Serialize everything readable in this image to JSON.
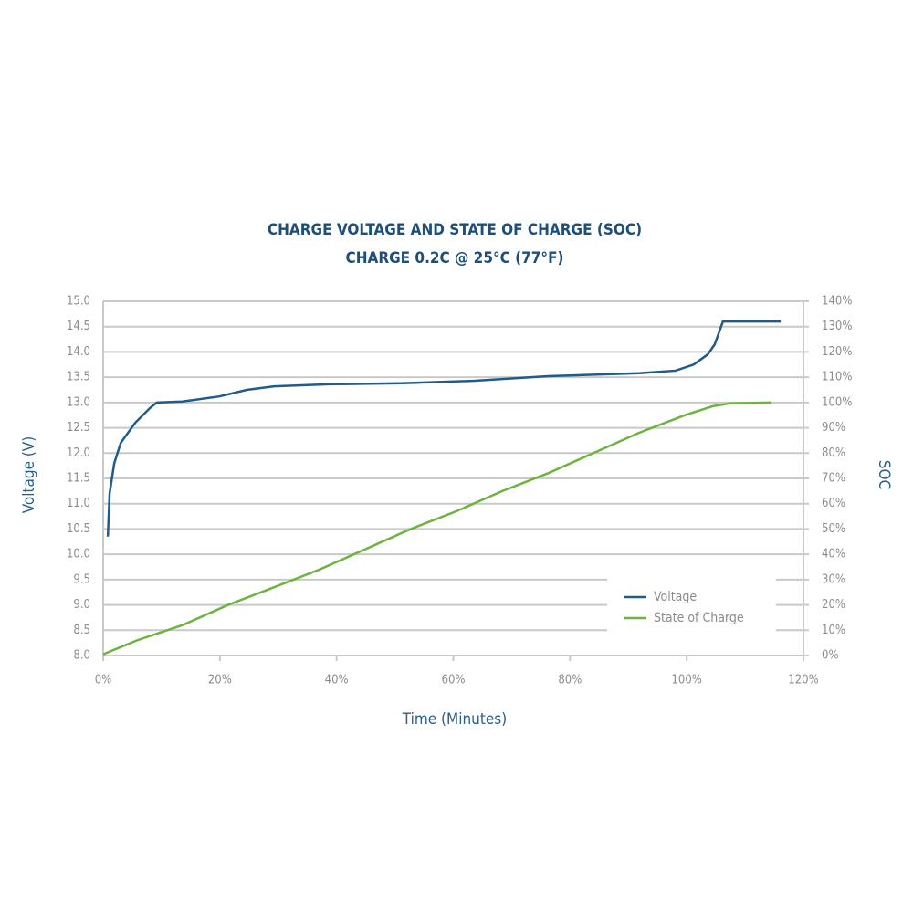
{
  "chart_data": {
    "type": "line",
    "title": "CHARGE VOLTAGE AND STATE OF CHARGE (SOC)",
    "subtitle": "CHARGE 0.2C @ 25°C (77°F)",
    "x_label": "Time (Minutes)",
    "y_label": "Voltage (V)",
    "y2_label": "SOC",
    "xlim": [
      0,
      120
    ],
    "xticks": [
      {
        "value": 0,
        "label": "0%"
      },
      {
        "value": 20,
        "label": "20%"
      },
      {
        "value": 40,
        "label": "40%"
      },
      {
        "value": 60,
        "label": "60%"
      },
      {
        "value": 80,
        "label": "80%"
      },
      {
        "value": 100,
        "label": "100%"
      },
      {
        "value": 120,
        "label": "120%"
      }
    ],
    "ylim": [
      8,
      15
    ],
    "yticks": [
      {
        "value": 8,
        "label": "8.0"
      },
      8.5,
      {
        "value": 9,
        "label": "9.0"
      },
      9.5,
      {
        "value": 10,
        "label": "10.0"
      },
      10.5,
      {
        "value": 11,
        "label": "11.0"
      },
      11.5,
      {
        "value": 12,
        "label": "12.0"
      },
      12.5,
      {
        "value": 13,
        "label": "13.0"
      },
      13.5,
      {
        "value": 14,
        "label": "14.0"
      },
      14.5,
      {
        "value": 15,
        "label": "15.0"
      }
    ],
    "y2lim": [
      0,
      140
    ],
    "y2ticks": [
      {
        "value": 0,
        "label": "0%"
      },
      {
        "value": 10,
        "label": "10%"
      },
      {
        "value": 20,
        "label": "20%"
      },
      {
        "value": 30,
        "label": "30%"
      },
      {
        "value": 40,
        "label": "40%"
      },
      {
        "value": 50,
        "label": "50%"
      },
      {
        "value": 60,
        "label": "60%"
      },
      {
        "value": 70,
        "label": "70%"
      },
      {
        "value": 80,
        "label": "80%"
      },
      {
        "value": 90,
        "label": "90%"
      },
      {
        "value": 100,
        "label": "100%"
      },
      {
        "value": 110,
        "label": "110%"
      },
      {
        "value": 120,
        "label": "120%"
      },
      {
        "value": 130,
        "label": "130%"
      },
      {
        "value": 140,
        "label": "140%"
      }
    ],
    "grid": true,
    "legend": "lower right",
    "series": [
      {
        "name": "Voltage",
        "color": "#1f5c8c",
        "x": [
          0.8,
          1.1,
          1.9,
          3.0,
          5.5,
          8.1,
          9.2,
          13.6,
          19.9,
          24.6,
          29.3,
          38.6,
          51.2,
          63.7,
          76.2,
          91.8,
          98.1,
          101.2,
          103.6,
          104.8,
          106.2,
          116.1
        ],
        "values": [
          10.35,
          11.2,
          11.8,
          12.2,
          12.6,
          12.9,
          13.0,
          13.02,
          13.12,
          13.25,
          13.32,
          13.36,
          13.38,
          13.43,
          13.52,
          13.58,
          13.63,
          13.75,
          13.95,
          14.15,
          14.6,
          14.6
        ]
      },
      {
        "name": "State of Charge",
        "color": "#6cb33f",
        "axis": "y2",
        "x": [
          0,
          5.8,
          13.6,
          21.4,
          29.3,
          37.1,
          44.9,
          52.7,
          60.5,
          68.4,
          76.2,
          84.0,
          91.8,
          99.7,
          104.4,
          107.5,
          114.5
        ],
        "values": [
          0.5,
          6,
          12,
          20,
          27,
          34,
          42,
          50,
          57,
          65,
          72,
          80,
          88,
          95,
          98.5,
          99.7,
          100
        ]
      }
    ]
  }
}
